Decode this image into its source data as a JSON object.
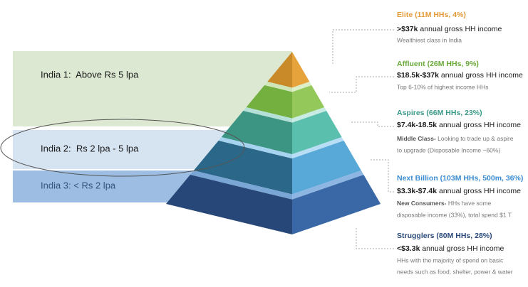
{
  "bands": [
    {
      "label": "India 1:  Above Rs 5 lpa"
    },
    {
      "label": "India 2:  Rs 2 lpa - 5 lpa"
    },
    {
      "label": "India 3: < Rs 2 lpa"
    }
  ],
  "tiers": [
    {
      "title": "Elite (11M HHs, 4%)",
      "income": ">$37k",
      "income_rest": "annual gross HH income",
      "desc_lines": [
        "Wealthiest class in India"
      ]
    },
    {
      "title": "Affluent (26M HHs, 9%)",
      "income": "$18.5k-$37k",
      "income_rest": "annual gross HH income",
      "desc_lines": [
        "Top 6-10% of highest income HHs"
      ]
    },
    {
      "title": "Aspires (66M HHs, 23%)",
      "income": "$7.4k-18.5k",
      "income_rest": "annual gross HH income",
      "desc_bold": "Middle Class-",
      "desc_lines": [
        "Looking to trade up & aspire",
        "to upgrade (Disposable Income ~60%)"
      ]
    },
    {
      "title": "Next Billion (103M HHs, 500m, 36%)",
      "income": "$3.3k-$7.4k",
      "income_rest": "annual gross HH income",
      "desc_bold": "New Consumers-",
      "desc_lines": [
        "HHs have some",
        "disposable income (33%), total spend $1 T"
      ]
    },
    {
      "title": "Strugglers (80M HHs, 28%)",
      "income": "<$3.3k",
      "income_rest": "annual gross HH income",
      "desc_lines": [
        "HHs with the majority of spend on basic",
        "needs such as food, shelter, power & water"
      ]
    }
  ]
}
